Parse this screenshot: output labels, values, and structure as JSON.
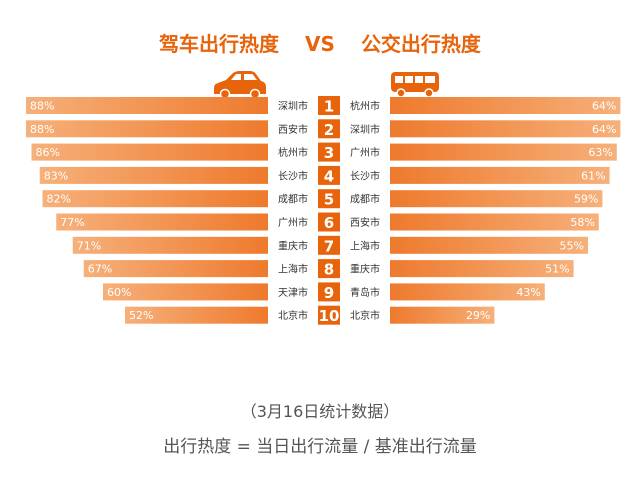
{
  "title": {
    "left": "驾车出行热度",
    "vs": "VS",
    "right": "公交出行热度"
  },
  "colors": {
    "accent": "#e8640c",
    "bar_dark": "#ee7a2d",
    "bar_light": "#f6b07a",
    "rank_bg": "#e8640c",
    "text": "#555555"
  },
  "icons": {
    "left": "car-icon",
    "right": "bus-icon"
  },
  "chart_data": [
    {
      "type": "bar",
      "orientation": "horizontal",
      "direction": "right-to-left",
      "title": "驾车出行热度",
      "ranks": [
        "1",
        "2",
        "3",
        "4",
        "5",
        "6",
        "7",
        "8",
        "9",
        "10"
      ],
      "categories": [
        "深圳市",
        "西安市",
        "杭州市",
        "长沙市",
        "成都市",
        "广州市",
        "重庆市",
        "上海市",
        "天津市",
        "北京市"
      ],
      "values": [
        88,
        88,
        86,
        83,
        82,
        77,
        71,
        67,
        60,
        52
      ],
      "value_labels": [
        "88%",
        "88%",
        "86%",
        "83%",
        "82%",
        "77%",
        "71%",
        "67%",
        "60%",
        "52%"
      ],
      "unit": "%",
      "xlim": [
        0,
        100
      ]
    },
    {
      "type": "bar",
      "orientation": "horizontal",
      "direction": "left-to-right",
      "title": "公交出行热度",
      "ranks": [
        "1",
        "2",
        "3",
        "4",
        "5",
        "6",
        "7",
        "8",
        "9",
        "10"
      ],
      "categories": [
        "杭州市",
        "深圳市",
        "广州市",
        "长沙市",
        "成都市",
        "西安市",
        "上海市",
        "重庆市",
        "青岛市",
        "北京市"
      ],
      "values": [
        64,
        64,
        63,
        61,
        59,
        58,
        55,
        51,
        43,
        29
      ],
      "value_labels": [
        "64%",
        "64%",
        "63%",
        "61%",
        "59%",
        "58%",
        "55%",
        "51%",
        "43%",
        "29%"
      ],
      "unit": "%",
      "xlim": [
        0,
        70
      ]
    }
  ],
  "footer": {
    "date_note": "（3月16日统计数据）",
    "formula": "出行热度 = 当日出行流量 / 基准出行流量"
  }
}
